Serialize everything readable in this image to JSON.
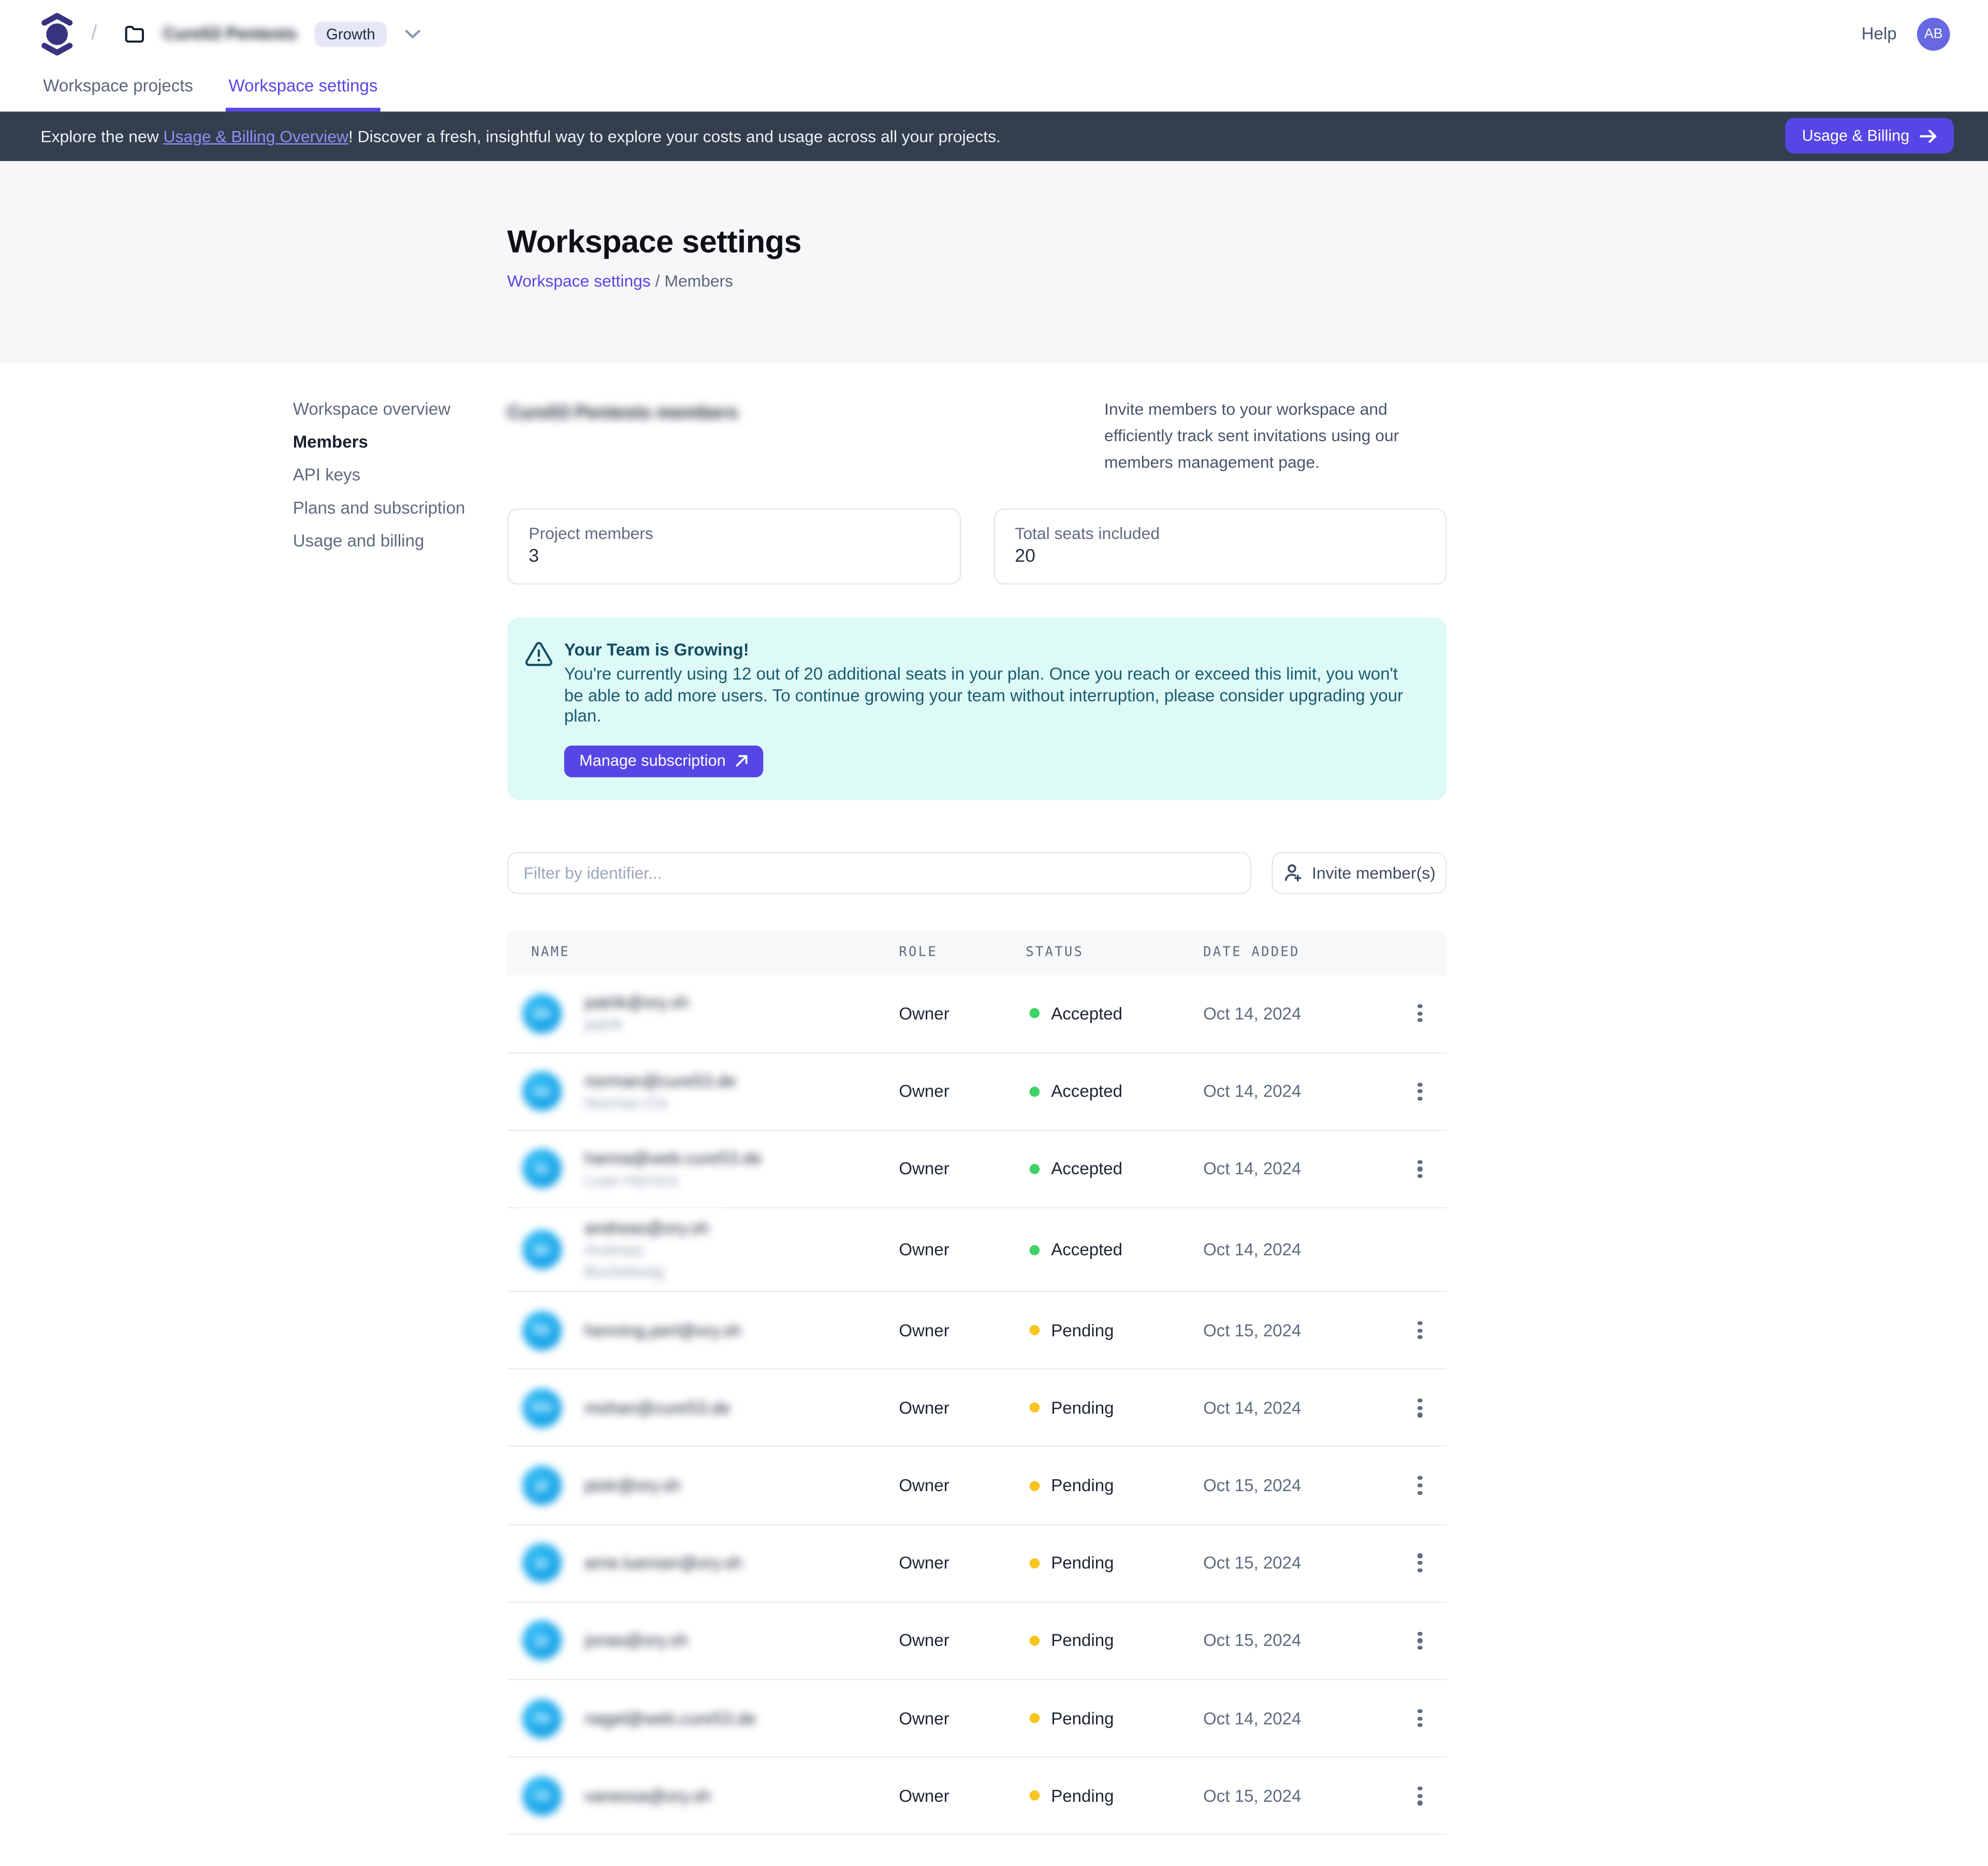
{
  "header": {
    "breadcrumb_separator": "/",
    "workspace_name_redacted": "Cure53 Pentests",
    "plan_badge": "Growth",
    "help_label": "Help",
    "avatar_initials": "AB"
  },
  "tabs": [
    {
      "label": "Workspace projects",
      "active": false
    },
    {
      "label": "Workspace settings",
      "active": true
    }
  ],
  "banner": {
    "text_before": "Explore the new ",
    "link_text": "Usage & Billing Overview",
    "text_after": "! Discover a fresh, insightful way to explore your costs and usage across all your projects.",
    "button_label": "Usage & Billing"
  },
  "hero": {
    "title": "Workspace settings",
    "breadcrumb_link": "Workspace settings",
    "breadcrumb_separator": "/",
    "breadcrumb_current": "Members"
  },
  "sidebar": {
    "items": [
      {
        "label": "Workspace overview",
        "active": false
      },
      {
        "label": "Members",
        "active": true
      },
      {
        "label": "API keys",
        "active": false
      },
      {
        "label": "Plans and subscription",
        "active": false
      },
      {
        "label": "Usage and billing",
        "active": false
      }
    ]
  },
  "members": {
    "section_title_redacted": "Cure53 Pentests members",
    "description": "Invite members to your workspace and efficiently track sent invitations using our members management page.",
    "stats": [
      {
        "label": "Project members",
        "value": "3"
      },
      {
        "label": "Total seats included",
        "value": "20"
      }
    ],
    "alert": {
      "title": "Your Team is Growing!",
      "body": "You're currently using 12 out of 20 additional seats in your plan. Once you reach or exceed this limit, you won't be able to add more users. To continue growing your team without interruption, please consider upgrading your plan.",
      "button_label": "Manage subscription"
    },
    "filter_placeholder": "Filter by identifier...",
    "invite_button_label": "Invite member(s)",
    "table": {
      "columns": [
        "NAME",
        "ROLE",
        "STATUS",
        "DATE ADDED"
      ],
      "status_colors": {
        "Accepted": "#3fd266",
        "Pending": "#f7c51d"
      },
      "rows": [
        {
          "redacted": true,
          "initials": "pa",
          "email_redacted": "patrik@ory.sh",
          "secondary_redacted": [
            "patrik"
          ],
          "role": "Owner",
          "status": "Accepted",
          "date_added": "Oct 14, 2024",
          "has_menu": true
        },
        {
          "redacted": true,
          "initials": "no",
          "email_redacted": "norman@cure53.de",
          "secondary_redacted": [
            "Norman Cls"
          ],
          "role": "Owner",
          "status": "Accepted",
          "date_added": "Oct 14, 2024",
          "has_menu": true
        },
        {
          "redacted": true,
          "initials": "lu",
          "email_redacted": "hanna@web.cure53.de",
          "secondary_redacted": [
            "Luan Herrera"
          ],
          "role": "Owner",
          "status": "Accepted",
          "date_added": "Oct 14, 2024",
          "has_menu": true
        },
        {
          "redacted": true,
          "initials": "an",
          "email_redacted": "andreas@ory.sh",
          "secondary_redacted": [
            "Andreas",
            "Buckelswig"
          ],
          "role": "Owner",
          "status": "Accepted",
          "date_added": "Oct 14, 2024",
          "has_menu": false
        },
        {
          "redacted": true,
          "initials": "he",
          "email_redacted": "henning.perl@ory.sh",
          "secondary_redacted": [],
          "role": "Owner",
          "status": "Pending",
          "date_added": "Oct 15, 2024",
          "has_menu": true
        },
        {
          "redacted": true,
          "initials": "mo",
          "email_redacted": "mohan@cure53.de",
          "secondary_redacted": [],
          "role": "Owner",
          "status": "Pending",
          "date_added": "Oct 14, 2024",
          "has_menu": true
        },
        {
          "redacted": true,
          "initials": "pi",
          "email_redacted": "piotr@ory.sh",
          "secondary_redacted": [],
          "role": "Owner",
          "status": "Pending",
          "date_added": "Oct 15, 2024",
          "has_menu": true
        },
        {
          "redacted": true,
          "initials": "ar",
          "email_redacted": "arne.luenser@ory.sh",
          "secondary_redacted": [],
          "role": "Owner",
          "status": "Pending",
          "date_added": "Oct 15, 2024",
          "has_menu": true
        },
        {
          "redacted": true,
          "initials": "jo",
          "email_redacted": "jonas@ory.sh",
          "secondary_redacted": [],
          "role": "Owner",
          "status": "Pending",
          "date_added": "Oct 15, 2024",
          "has_menu": true
        },
        {
          "redacted": true,
          "initials": "na",
          "email_redacted": "nagel@web.cure53.de",
          "secondary_redacted": [],
          "role": "Owner",
          "status": "Pending",
          "date_added": "Oct 14, 2024",
          "has_menu": true
        },
        {
          "redacted": true,
          "initials": "va",
          "email_redacted": "vanessa@ory.sh",
          "secondary_redacted": [],
          "role": "Owner",
          "status": "Pending",
          "date_added": "Oct 15, 2024",
          "has_menu": true
        }
      ]
    }
  },
  "colors": {
    "accent_indigo": "#5746e6",
    "banner_background": "#333e4e",
    "alert_background": "#ddfaf7",
    "alert_text": "#1b5a6e",
    "status_accepted": "#3fd266",
    "status_pending": "#f7c51d",
    "avatar_blue": "#18a7ea",
    "avatar_indigo": "#6768e2"
  }
}
